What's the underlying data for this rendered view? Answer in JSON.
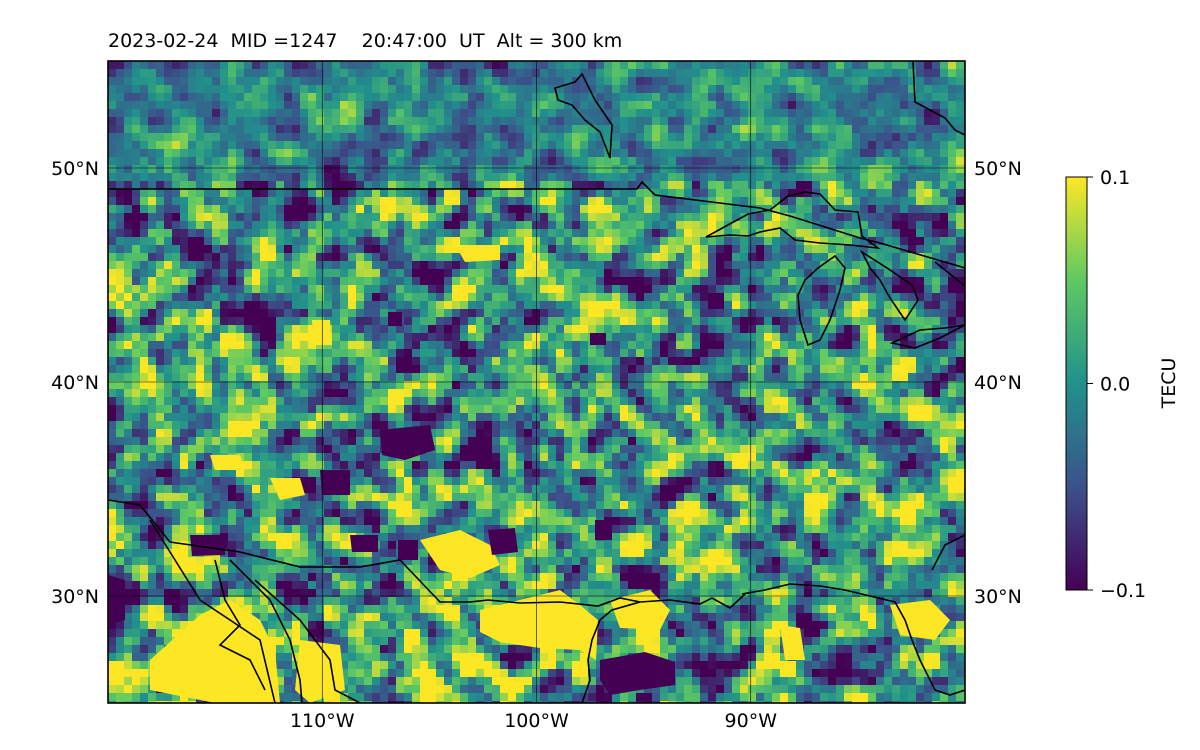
{
  "title": {
    "date": "2023-02-24",
    "mid_label": "MID =1247",
    "time_label": "20:47:00  UT",
    "alt_label": "Alt = 300 km"
  },
  "map": {
    "lon_range": [
      -120,
      -80
    ],
    "lat_range": [
      25,
      55
    ],
    "lat_ticks": [
      {
        "value": 30,
        "label": "30°N"
      },
      {
        "value": 40,
        "label": "40°N"
      },
      {
        "value": 50,
        "label": "50°N"
      }
    ],
    "lon_ticks": [
      {
        "value": -110,
        "label": "110°W"
      },
      {
        "value": -100,
        "label": "100°W"
      },
      {
        "value": -90,
        "label": "90°W"
      }
    ],
    "grid": true,
    "field": "TEC perturbation (dTEC), gridded, viridis colormap"
  },
  "colorbar": {
    "label": "TECU",
    "min": -0.1,
    "max": 0.1,
    "ticks": [
      {
        "value": 0.1,
        "label": "0.1"
      },
      {
        "value": 0.0,
        "label": "0.0"
      },
      {
        "value": -0.1,
        "label": "−0.1"
      }
    ],
    "colormap": [
      "#440154",
      "#3b528b",
      "#21918c",
      "#5ec962",
      "#fde725"
    ]
  }
}
